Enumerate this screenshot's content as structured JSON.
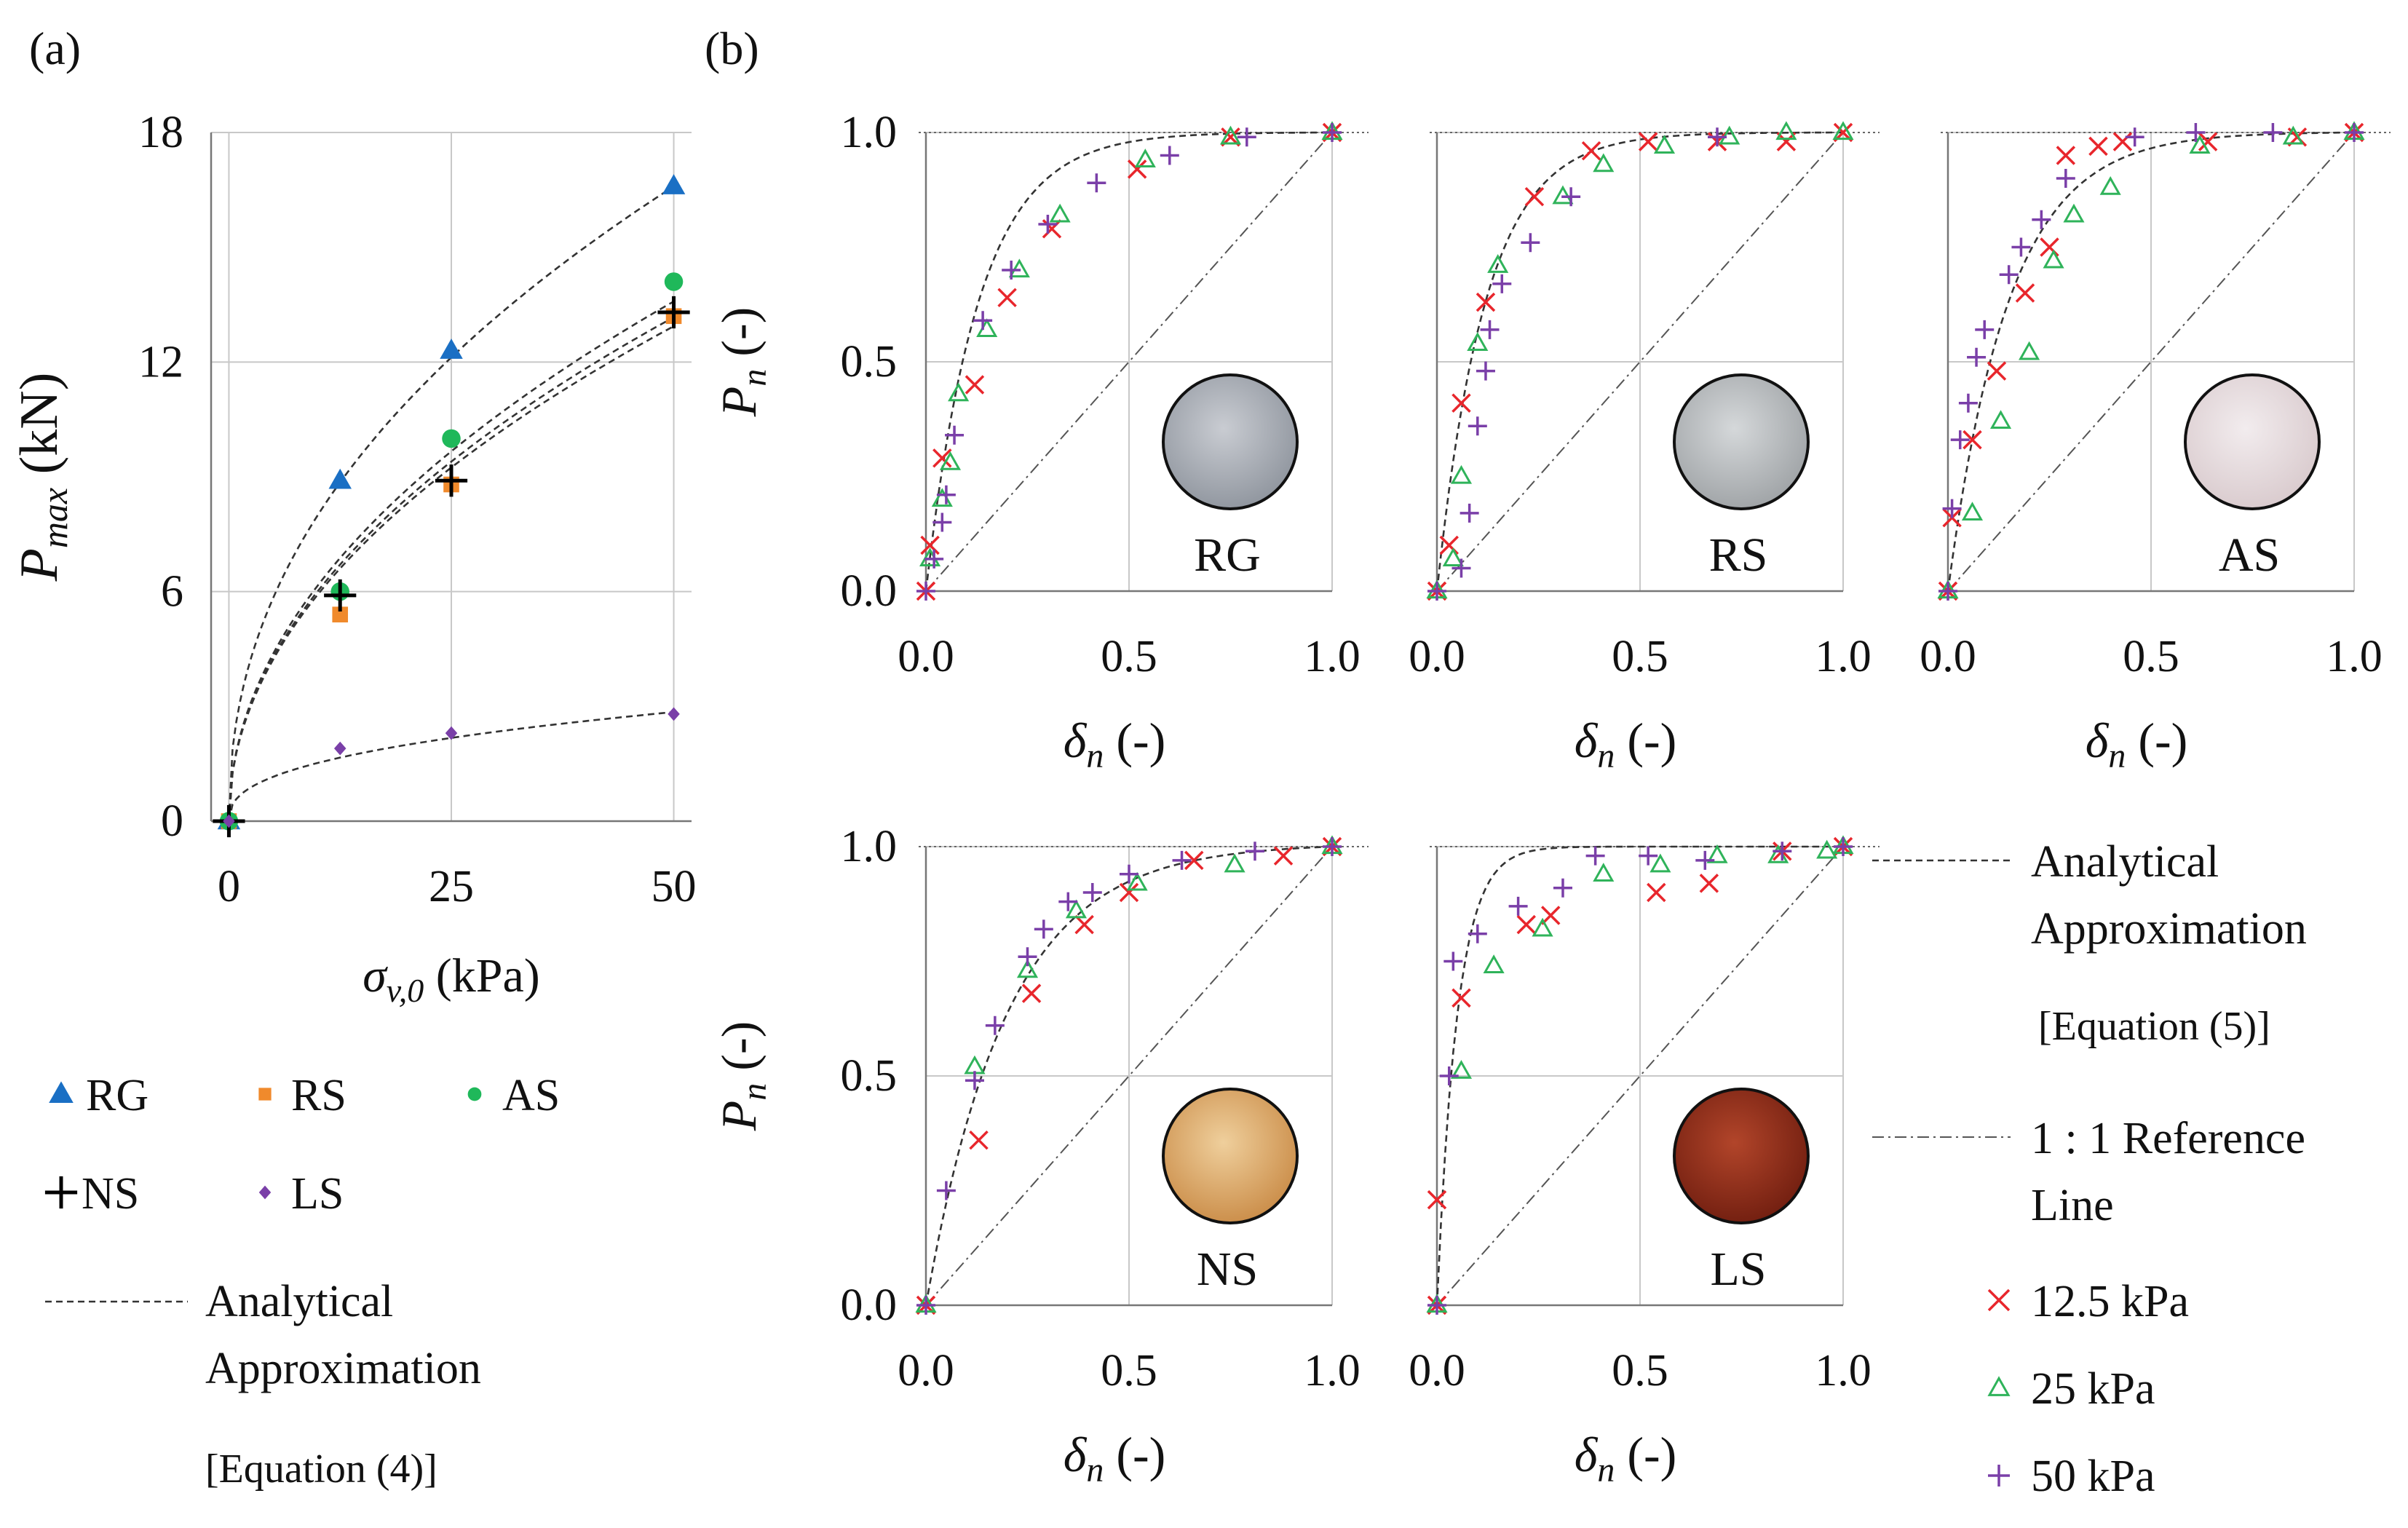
{
  "figure": {
    "panel_a_label": "(a)",
    "panel_b_label": "(b)"
  },
  "colors": {
    "RG": "#1a6fc4",
    "RS": "#f08a2c",
    "AS": "#1fb85a",
    "NS": "#000000",
    "LS": "#7a3fa8",
    "p12": "#e8262c",
    "p25": "#2fb35a",
    "p50": "#7a3fa8"
  },
  "chart_data": [
    {
      "id": "a",
      "type": "scatter",
      "title": "",
      "xlabel": "σv,0 (kPa)",
      "ylabel": "Pmax (kN)",
      "xlim": [
        -2,
        52
      ],
      "ylim": [
        0,
        18
      ],
      "xticks": [
        "0",
        "25",
        "50"
      ],
      "yticks": [
        "0",
        "6",
        "12",
        "18"
      ],
      "grid": true,
      "series": [
        {
          "name": "RG",
          "marker": "triangle",
          "x": [
            0,
            12.5,
            25,
            50
          ],
          "y": [
            0,
            8.9,
            12.3,
            16.6
          ],
          "fit": {
            "a": 2.82,
            "b": 0.453
          }
        },
        {
          "name": "RS",
          "marker": "square",
          "x": [
            0,
            12.5,
            25,
            50
          ],
          "y": [
            0,
            5.4,
            8.8,
            13.2
          ],
          "fit": {
            "a": 1.94,
            "b": 0.485
          }
        },
        {
          "name": "AS",
          "marker": "circle",
          "x": [
            0,
            12.5,
            25,
            50
          ],
          "y": [
            0,
            6.0,
            10.0,
            14.1
          ],
          "fit": {
            "a": 1.99,
            "b": 0.491
          }
        },
        {
          "name": "NS",
          "marker": "plus",
          "x": [
            0,
            12.5,
            25,
            50
          ],
          "y": [
            0,
            5.9,
            8.9,
            13.3
          ],
          "fit": {
            "a": 1.96,
            "b": 0.487
          }
        },
        {
          "name": "LS",
          "marker": "diamond",
          "x": [
            0,
            12.5,
            25,
            50
          ],
          "y": [
            0,
            1.9,
            2.3,
            2.8
          ],
          "fit": {
            "a": 0.62,
            "b": 0.39
          }
        }
      ],
      "legend": {
        "entries": [
          "RG",
          "RS",
          "AS",
          "NS",
          "LS"
        ],
        "fit_label_lines": [
          "Analytical",
          "Approximation",
          "[Equation (4)]"
        ]
      }
    },
    {
      "id": "b",
      "type": "scatter",
      "xlabel": "δn (-)",
      "ylabel": "Pn (-)",
      "xlim": [
        0,
        1
      ],
      "ylim": [
        0,
        1
      ],
      "xticks": [
        "0.0",
        "0.5",
        "1.0"
      ],
      "yticks": [
        "0.0",
        "0.5",
        "1.0"
      ],
      "series_names": [
        "12.5 kPa",
        "25 kPa",
        "50 kPa"
      ],
      "legend": {
        "fit_label_lines": [
          "Analytical",
          "Approximation",
          "[Equation (5)]"
        ],
        "ref_label_lines": [
          "1 : 1 Reference",
          "Line"
        ],
        "entries": [
          "12.5 kPa",
          "25 kPa",
          "50 kPa"
        ]
      },
      "subplots": [
        {
          "label": "RG",
          "fit_k": 0.13,
          "p12": {
            "x": [
              0.0,
              0.01,
              0.04,
              0.12,
              0.2,
              0.31,
              0.52,
              0.75,
              1.0
            ],
            "y": [
              0.0,
              0.1,
              0.29,
              0.45,
              0.64,
              0.79,
              0.92,
              0.99,
              1.0
            ]
          },
          "p25": {
            "x": [
              0.01,
              0.04,
              0.06,
              0.08,
              0.15,
              0.23,
              0.33,
              0.54,
              0.75,
              1.0
            ],
            "y": [
              0.07,
              0.2,
              0.28,
              0.43,
              0.57,
              0.7,
              0.82,
              0.94,
              0.99,
              1.0
            ]
          },
          "p50": {
            "x": [
              0.0,
              0.02,
              0.04,
              0.05,
              0.07,
              0.14,
              0.21,
              0.3,
              0.42,
              0.6,
              0.79,
              1.0
            ],
            "y": [
              0.0,
              0.07,
              0.15,
              0.21,
              0.34,
              0.59,
              0.7,
              0.8,
              0.89,
              0.95,
              0.99,
              1.0
            ]
          }
        },
        {
          "label": "RS",
          "fit_k": 0.12,
          "p12": {
            "x": [
              0.0,
              0.03,
              0.06,
              0.12,
              0.24,
              0.38,
              0.52,
              0.69,
              0.86,
              1.0
            ],
            "y": [
              0.0,
              0.1,
              0.41,
              0.63,
              0.86,
              0.96,
              0.98,
              0.98,
              0.98,
              1.0
            ]
          },
          "p25": {
            "x": [
              0.0,
              0.04,
              0.06,
              0.1,
              0.15,
              0.31,
              0.41,
              0.56,
              0.72,
              0.86,
              1.0
            ],
            "y": [
              0.0,
              0.07,
              0.25,
              0.54,
              0.71,
              0.86,
              0.93,
              0.97,
              0.99,
              1.0,
              1.0
            ]
          },
          "p50": {
            "x": [
              0.0,
              0.06,
              0.08,
              0.1,
              0.12,
              0.13,
              0.16,
              0.23,
              0.33,
              0.69
            ],
            "y": [
              0.0,
              0.05,
              0.17,
              0.36,
              0.48,
              0.57,
              0.67,
              0.76,
              0.86,
              0.99
            ]
          }
        },
        {
          "label": "AS",
          "fit_k": 0.15,
          "p12": {
            "x": [
              0.0,
              0.01,
              0.06,
              0.12,
              0.19,
              0.25,
              0.29,
              0.37,
              0.43,
              0.64,
              0.86,
              1.0
            ],
            "y": [
              0.0,
              0.16,
              0.33,
              0.48,
              0.65,
              0.75,
              0.95,
              0.97,
              0.98,
              0.98,
              0.99,
              1.0
            ]
          },
          "p25": {
            "x": [
              0.0,
              0.06,
              0.13,
              0.2,
              0.26,
              0.31,
              0.4,
              0.62,
              0.85,
              1.0
            ],
            "y": [
              0.0,
              0.17,
              0.37,
              0.52,
              0.72,
              0.82,
              0.88,
              0.97,
              0.99,
              1.0
            ]
          },
          "p50": {
            "x": [
              0.0,
              0.01,
              0.03,
              0.05,
              0.07,
              0.09,
              0.15,
              0.18,
              0.23,
              0.29,
              0.46,
              0.61,
              0.8,
              1.0
            ],
            "y": [
              0.0,
              0.18,
              0.33,
              0.41,
              0.51,
              0.57,
              0.69,
              0.75,
              0.81,
              0.9,
              0.99,
              1.0,
              1.0,
              1.0
            ]
          }
        },
        {
          "label": "NS",
          "fit_k": 0.2,
          "p12": {
            "x": [
              0.0,
              0.13,
              0.26,
              0.39,
              0.5,
              0.66,
              0.88,
              1.0
            ],
            "y": [
              0.0,
              0.36,
              0.68,
              0.83,
              0.9,
              0.97,
              0.98,
              1.0
            ]
          },
          "p25": {
            "x": [
              0.0,
              0.12,
              0.25,
              0.37,
              0.52,
              0.76,
              1.0
            ],
            "y": [
              0.0,
              0.52,
              0.73,
              0.86,
              0.92,
              0.96,
              1.0
            ]
          },
          "p50": {
            "x": [
              0.0,
              0.05,
              0.12,
              0.17,
              0.25,
              0.29,
              0.35,
              0.41,
              0.5,
              0.63,
              0.81,
              1.0
            ],
            "y": [
              0.0,
              0.25,
              0.49,
              0.61,
              0.76,
              0.82,
              0.88,
              0.9,
              0.94,
              0.97,
              0.99,
              1.0
            ]
          }
        },
        {
          "label": "LS",
          "fit_k": 0.05,
          "p12": {
            "x": [
              0.0,
              0.0,
              0.06,
              0.22,
              0.28,
              0.54,
              0.67,
              0.85,
              1.0
            ],
            "y": [
              0.0,
              0.23,
              0.67,
              0.83,
              0.85,
              0.9,
              0.92,
              0.99,
              1.0
            ]
          },
          "p25": {
            "x": [
              0.0,
              0.06,
              0.14,
              0.26,
              0.41,
              0.55,
              0.69,
              0.84,
              0.96,
              1.0
            ],
            "y": [
              0.0,
              0.51,
              0.74,
              0.82,
              0.94,
              0.96,
              0.98,
              0.98,
              0.99,
              1.0
            ]
          },
          "p50": {
            "x": [
              0.0,
              0.03,
              0.04,
              0.1,
              0.2,
              0.31,
              0.39,
              0.52,
              0.66,
              0.85,
              1.0
            ],
            "y": [
              0.0,
              0.5,
              0.75,
              0.81,
              0.87,
              0.91,
              0.98,
              0.98,
              0.97,
              0.99,
              1.0
            ]
          }
        }
      ]
    }
  ]
}
